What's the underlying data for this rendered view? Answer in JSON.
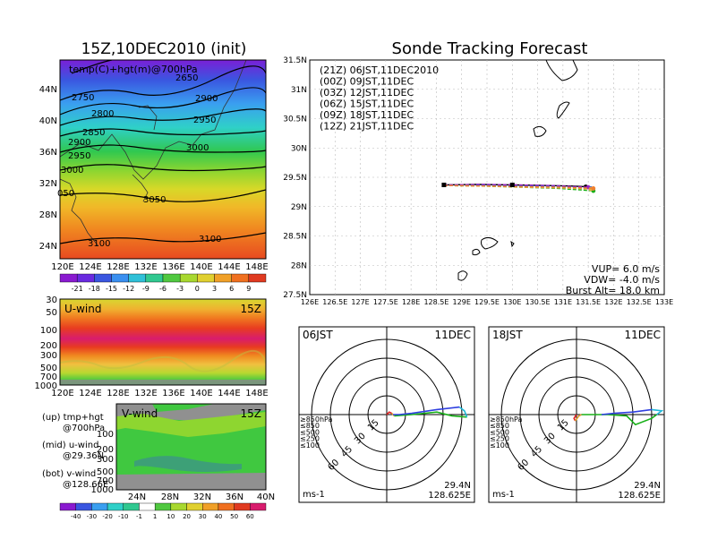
{
  "titles": {
    "left": "15Z,10DEC2010 (init)",
    "right": "Sonde Tracking Forecast"
  },
  "map_panel": {
    "overlay_label": "temp(C)+hgt(m)@700hPa",
    "lat_ticks": [
      "44N",
      "40N",
      "36N",
      "32N",
      "28N",
      "24N"
    ],
    "lon_ticks": [
      "120E",
      "124E",
      "128E",
      "132E",
      "136E",
      "140E",
      "144E",
      "148E"
    ],
    "contour_labels": [
      "2650",
      "2750",
      "2800",
      "2850",
      "2900",
      "2900",
      "2950",
      "2950",
      "3000",
      "3000",
      "3050",
      "3100",
      "3100",
      "050"
    ],
    "colorbar_labels": [
      "-21",
      "-18",
      "-15",
      "-12",
      "-9",
      "-6",
      "-3",
      "0",
      "3",
      "6",
      "9"
    ]
  },
  "u_panel": {
    "label": "U-wind",
    "time": "15Z",
    "p_ticks": [
      "30",
      "50",
      "100",
      "200",
      "300",
      "500",
      "700",
      "1000"
    ],
    "lon_ticks": [
      "120E",
      "124E",
      "128E",
      "132E",
      "136E",
      "140E",
      "144E",
      "148E"
    ]
  },
  "v_panel": {
    "label": "V-wind",
    "time": "15Z",
    "p_ticks": [
      "100",
      "200",
      "300",
      "500",
      "700",
      "1000"
    ],
    "lat_ticks": [
      "24N",
      "28N",
      "32N",
      "36N",
      "40N"
    ],
    "colorbar_labels": [
      "-40",
      "-30",
      "-20",
      "-10",
      "-1",
      "1",
      "10",
      "20",
      "30",
      "40",
      "50",
      "60"
    ]
  },
  "legend_notes": {
    "up_1": "(up) tmp+hgt",
    "up_2": "@700hPa",
    "mid_1": "(mid) u-wind",
    "mid_2": "@29.36N",
    "bot_1": "(bot) v-wind",
    "bot_2": "@128.66E"
  },
  "track_panel": {
    "lat_ticks": [
      "31.5N",
      "31N",
      "30.5N",
      "30N",
      "29.5N",
      "29N",
      "28.5N",
      "28N",
      "27.5N"
    ],
    "lon_ticks": [
      "126E",
      "126.5E",
      "127E",
      "127.5E",
      "128E",
      "128.5E",
      "129E",
      "129.5E",
      "130E",
      "130.5E",
      "131E",
      "131.5E",
      "132E",
      "132.5E",
      "133E"
    ],
    "runs": [
      {
        "label": "(21Z) 06JST,11DEC2010",
        "color": "#000000"
      },
      {
        "label": "(00Z) 09JST,11DEC",
        "color": "#a020c0"
      },
      {
        "label": "(03Z) 12JST,11DEC",
        "color": "#2a5ad8"
      },
      {
        "label": "(06Z) 15JST,11DEC",
        "color": "#18b018"
      },
      {
        "label": "(09Z) 18JST,11DEC",
        "color": "#e0b040"
      },
      {
        "label": "(12Z) 21JST,11DEC",
        "color": "#f08030"
      }
    ],
    "params": {
      "vup": "VUP= 6.0 m/s",
      "vdw": "VDW= -4.0 m/s",
      "burst": "Burst Alt= 18.0 km"
    }
  },
  "hodo_left": {
    "time_label": "06JST",
    "date_label": "11DEC",
    "ring_labels": [
      "15",
      "30",
      "45",
      "60"
    ],
    "levels": [
      "≥850hPa",
      "≤850",
      "≤500",
      "≤250",
      "≤100"
    ],
    "level_colors": [
      "#e02020",
      "#e0a030",
      "#18b018",
      "#20b8d8",
      "#3040e0"
    ],
    "unit": "ms-1",
    "lat": "29.4N",
    "lon": "128.625E"
  },
  "hodo_right": {
    "time_label": "18JST",
    "date_label": "11DEC",
    "ring_labels": [
      "15",
      "30",
      "45",
      "60"
    ],
    "levels": [
      "≥850hPa",
      "≤850",
      "≤500",
      "≤250",
      "≤100"
    ],
    "level_colors": [
      "#e02020",
      "#e0a030",
      "#18b018",
      "#20b8d8",
      "#3040e0"
    ],
    "unit": "ms-1",
    "lat": "29.4N",
    "lon": "128.625E"
  },
  "chart_data": [
    {
      "type": "heatmap",
      "title": "15Z,10DEC2010 (init)",
      "annotation": "temp(C)+hgt(m)@700hPa",
      "xlim": [
        "120E",
        "150E"
      ],
      "ylim": [
        "22N",
        "48N"
      ],
      "color_levels": [
        -21,
        -18,
        -15,
        -12,
        -9,
        -6,
        -3,
        0,
        3,
        6,
        9
      ],
      "height_contours_m": [
        2650,
        2750,
        2800,
        2850,
        2900,
        2950,
        3000,
        3050,
        3100
      ]
    },
    {
      "type": "heatmap",
      "annotation": "U-wind 15Z",
      "ylim_hPa": [
        1000,
        30
      ],
      "xlim": [
        "120E",
        "150E"
      ]
    },
    {
      "type": "heatmap",
      "annotation": "V-wind 15Z",
      "ylim_hPa": [
        1000,
        30
      ],
      "xlim": [
        "24N",
        "40N"
      ],
      "color_levels": [
        -40,
        -30,
        -20,
        -10,
        -1,
        1,
        10,
        20,
        30,
        40,
        50,
        60
      ]
    },
    {
      "type": "line",
      "title": "Sonde Tracking Forecast",
      "xlim": [
        126,
        133
      ],
      "ylim": [
        27.5,
        31.5
      ],
      "launch_point": {
        "lon": 128.65,
        "lat": 29.37
      },
      "series": [
        {
          "name": "(21Z) 06JST,11DEC2010",
          "points": [
            [
              128.65,
              29.37
            ],
            [
              129.3,
              29.38
            ],
            [
              130.0,
              29.37
            ],
            [
              130.7,
              29.36
            ],
            [
              131.2,
              29.35
            ],
            [
              131.45,
              29.34
            ]
          ]
        },
        {
          "name": "(00Z) 09JST,11DEC",
          "points": [
            [
              128.65,
              29.37
            ],
            [
              129.4,
              29.38
            ],
            [
              130.1,
              29.37
            ],
            [
              130.8,
              29.36
            ],
            [
              131.5,
              29.33
            ]
          ]
        },
        {
          "name": "(03Z) 12JST,11DEC",
          "points": [
            [
              128.65,
              29.36
            ],
            [
              129.4,
              29.36
            ],
            [
              130.1,
              29.35
            ],
            [
              130.9,
              29.34
            ],
            [
              131.55,
              29.31
            ]
          ]
        },
        {
          "name": "(06Z) 15JST,11DEC",
          "points": [
            [
              128.65,
              29.36
            ],
            [
              129.4,
              29.35
            ],
            [
              130.2,
              29.33
            ],
            [
              130.9,
              29.31
            ],
            [
              131.6,
              29.27
            ]
          ]
        },
        {
          "name": "(09Z) 18JST,11DEC",
          "points": [
            [
              128.65,
              29.36
            ],
            [
              129.5,
              29.35
            ],
            [
              130.2,
              29.33
            ],
            [
              130.9,
              29.32
            ],
            [
              131.55,
              29.3
            ]
          ]
        },
        {
          "name": "(12Z) 21JST,11DEC",
          "points": [
            [
              128.65,
              29.36
            ],
            [
              129.5,
              29.35
            ],
            [
              130.2,
              29.34
            ],
            [
              131.0,
              29.33
            ],
            [
              131.6,
              29.31
            ]
          ]
        }
      ]
    },
    {
      "type": "line",
      "title": "06JST 11DEC",
      "unit": "ms-1",
      "rings": [
        15,
        30,
        45,
        60
      ],
      "series": [
        {
          "name": "≥850hPa",
          "uv": [
            [
              0,
              0
            ],
            [
              2,
              2
            ],
            [
              4,
              1
            ]
          ]
        },
        {
          "name": "≤850",
          "uv": [
            [
              4,
              1
            ],
            [
              6,
              -1
            ]
          ]
        },
        {
          "name": "≤500",
          "uv": [
            [
              6,
              -1
            ],
            [
              20,
              0
            ],
            [
              40,
              2
            ],
            [
              52,
              -1
            ],
            [
              64,
              -2
            ]
          ]
        },
        {
          "name": "≤250",
          "uv": [
            [
              64,
              -2
            ],
            [
              62,
              3
            ],
            [
              58,
              6
            ]
          ]
        },
        {
          "name": "≤100",
          "uv": [
            [
              58,
              6
            ],
            [
              40,
              4
            ],
            [
              20,
              1
            ],
            [
              10,
              0
            ],
            [
              5,
              0
            ]
          ]
        }
      ]
    },
    {
      "type": "line",
      "title": "18JST 11DEC",
      "unit": "ms-1",
      "rings": [
        15,
        30,
        45,
        60
      ],
      "series": [
        {
          "name": "≥850hPa",
          "uv": [
            [
              0,
              0
            ],
            [
              -2,
              -3
            ],
            [
              -1,
              -5
            ]
          ]
        },
        {
          "name": "≤850",
          "uv": [
            [
              -1,
              -5
            ],
            [
              2,
              -1
            ],
            [
              4,
              0
            ]
          ]
        },
        {
          "name": "≤500",
          "uv": [
            [
              4,
              0
            ],
            [
              25,
              0
            ],
            [
              40,
              -1
            ],
            [
              47,
              -8
            ],
            [
              60,
              -3
            ],
            [
              64,
              0
            ]
          ]
        },
        {
          "name": "≤250",
          "uv": [
            [
              64,
              0
            ],
            [
              68,
              3
            ],
            [
              60,
              4
            ]
          ]
        },
        {
          "name": "≤100",
          "uv": [
            [
              60,
              4
            ],
            [
              45,
              2
            ],
            [
              30,
              1
            ],
            [
              20,
              0
            ]
          ]
        }
      ]
    }
  ]
}
